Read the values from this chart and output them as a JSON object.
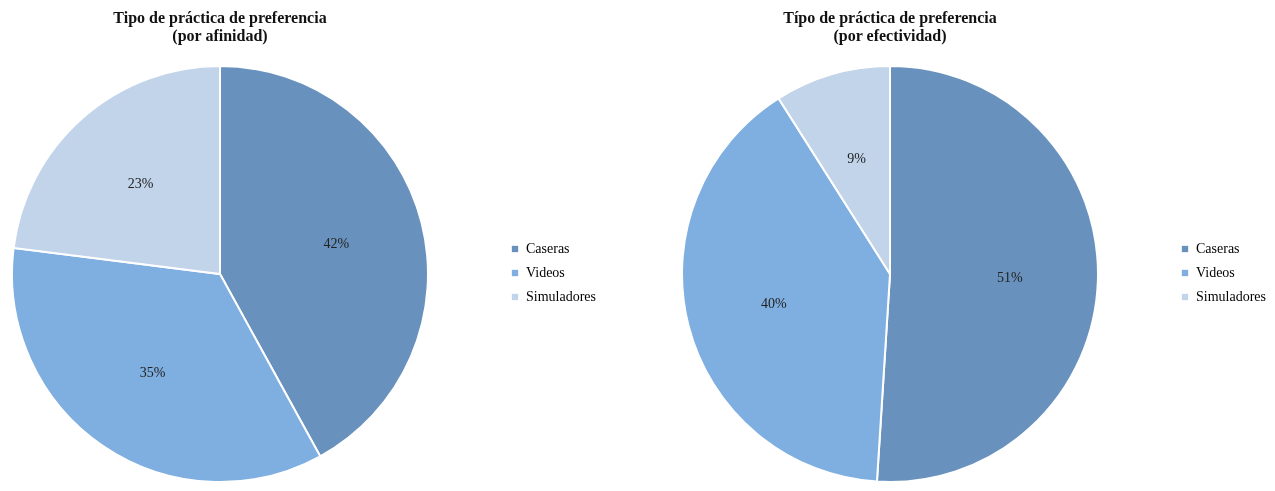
{
  "chart_data": [
    {
      "type": "pie",
      "title": "Tipo de práctica de preferencia\n(por afinidad)",
      "categories": [
        "Caseras",
        "Videos",
        "Simuladores"
      ],
      "values": [
        42,
        35,
        23
      ],
      "colors": [
        "#6892bd",
        "#7eafe0",
        "#c2d4ea"
      ],
      "value_labels": [
        "42%",
        "35%",
        "23%"
      ],
      "legend": "right"
    },
    {
      "type": "pie",
      "title": "Típo de práctica de preferencia\n(por efectividad)",
      "categories": [
        "Caseras",
        "Videos",
        "Simuladores"
      ],
      "values": [
        51,
        40,
        9
      ],
      "colors": [
        "#6892bd",
        "#7eafe0",
        "#c2d4ea"
      ],
      "value_labels": [
        "51%",
        "40%",
        "9%"
      ],
      "legend": "right"
    }
  ]
}
